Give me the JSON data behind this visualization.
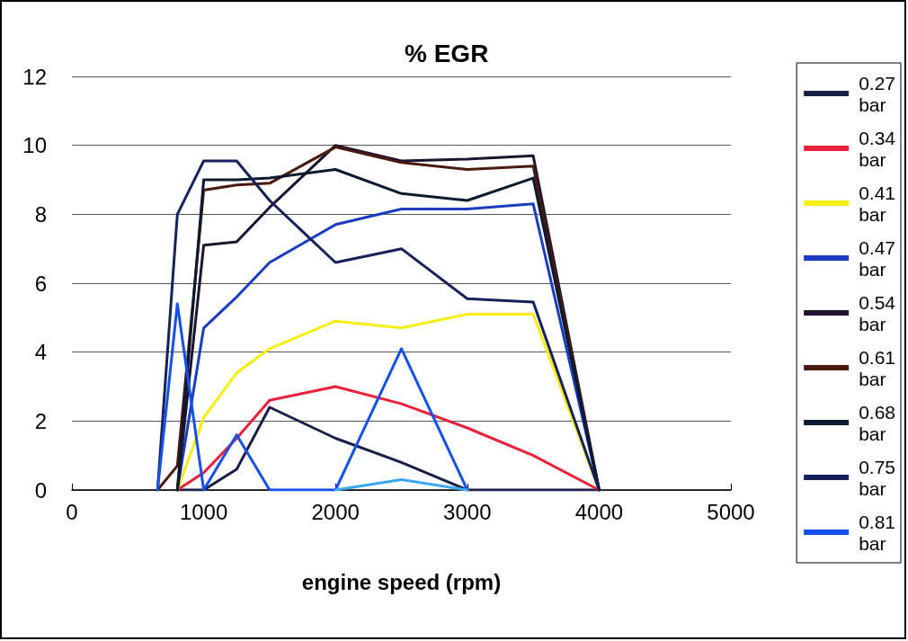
{
  "chart_data": {
    "type": "line",
    "title": "% EGR",
    "xlabel": "engine speed (rpm)",
    "xlim": [
      0,
      5000
    ],
    "xticks": [
      0,
      1000,
      2000,
      3000,
      4000,
      5000
    ],
    "ylim": [
      0,
      12
    ],
    "yticks": [
      0,
      2,
      4,
      6,
      8,
      10,
      12
    ],
    "grid": "y",
    "legend": "right",
    "marker": "none",
    "line_style": "solid",
    "series": [
      {
        "name": "0.27 bar",
        "color": "#1a1f4a",
        "x": [
          800,
          1000,
          1250,
          1500,
          2000,
          2500,
          3000,
          3500,
          4000
        ],
        "values": [
          0,
          0,
          0.6,
          2.4,
          1.5,
          0.8,
          0,
          0,
          0
        ]
      },
      {
        "name": "0.34 bar",
        "color": "#e8203a",
        "x": [
          800,
          1000,
          1250,
          1500,
          2000,
          2500,
          3000,
          3500,
          4000
        ],
        "values": [
          0,
          0.5,
          1.5,
          2.6,
          3.0,
          2.5,
          1.8,
          1.0,
          0
        ]
      },
      {
        "name": "0.41 bar",
        "color": "#f5ee10",
        "x": [
          800,
          1000,
          1250,
          1500,
          2000,
          2500,
          3000,
          3500,
          4000
        ],
        "values": [
          0,
          2.1,
          3.4,
          4.1,
          4.9,
          4.7,
          5.1,
          5.1,
          0
        ]
      },
      {
        "name": "0.47 bar",
        "color": "#1a3cc0",
        "x": [
          800,
          1000,
          1250,
          1500,
          2000,
          2500,
          3000,
          3500,
          4000
        ],
        "values": [
          0,
          4.7,
          5.6,
          6.6,
          7.7,
          8.15,
          8.15,
          8.3,
          0
        ]
      },
      {
        "name": "0.54 bar",
        "color": "#1e1430",
        "x": [
          800,
          1000,
          1250,
          1500,
          2000,
          2500,
          3000,
          3500,
          4000
        ],
        "values": [
          0,
          7.1,
          7.2,
          8.2,
          10.0,
          9.55,
          9.6,
          9.7,
          0
        ]
      },
      {
        "name": "0.61 bar",
        "color": "#4a1a10",
        "x": [
          650,
          800,
          1000,
          1250,
          1500,
          2000,
          2500,
          3000,
          3500,
          4000
        ],
        "values": [
          0,
          0.7,
          8.7,
          8.85,
          8.9,
          9.95,
          9.5,
          9.3,
          9.4,
          0
        ]
      },
      {
        "name": "0.68 bar",
        "color": "#0c1a30",
        "x": [
          800,
          1000,
          1250,
          1500,
          2000,
          2500,
          3000,
          3500,
          4000
        ],
        "values": [
          0,
          9.0,
          9.0,
          9.05,
          9.3,
          8.6,
          8.4,
          9.05,
          0
        ]
      },
      {
        "name": "0.75 bar",
        "color": "#16205a",
        "x": [
          650,
          800,
          1000,
          1250,
          1500,
          2000,
          2500,
          3000,
          3500,
          4000
        ],
        "values": [
          0,
          8.0,
          9.55,
          9.55,
          8.4,
          6.6,
          7.0,
          5.55,
          5.45,
          0
        ]
      },
      {
        "name": "0.81 bar",
        "color": "#1450ee",
        "x": [
          650,
          800,
          1000,
          1250,
          1500,
          2000,
          2500,
          3000
        ],
        "values": [
          0,
          5.4,
          0,
          1.6,
          0,
          0,
          4.1,
          0
        ]
      },
      {
        "color": "#3aa8f0",
        "x": [
          2000,
          2500,
          3000
        ],
        "values": [
          0,
          0.3,
          0
        ]
      }
    ]
  }
}
